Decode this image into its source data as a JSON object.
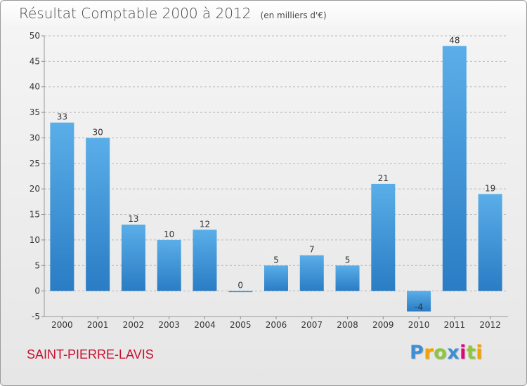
{
  "chart_data": {
    "type": "bar",
    "title": "Résultat Comptable 2000 à 2012",
    "subtitle": "(en milliers d'€)",
    "categories": [
      "2000",
      "2001",
      "2002",
      "2003",
      "2004",
      "2005",
      "2006",
      "2007",
      "2008",
      "2009",
      "2010",
      "2011",
      "2012"
    ],
    "values": [
      33,
      30,
      13,
      10,
      12,
      0,
      5,
      7,
      5,
      21,
      -4,
      48,
      19
    ],
    "ylim": [
      -5,
      50
    ],
    "yticks": [
      -5,
      0,
      5,
      10,
      15,
      20,
      25,
      30,
      35,
      40,
      45,
      50
    ],
    "xlabel": "",
    "ylabel": "",
    "grid": "horizontal-dashed",
    "bar_color": "#3a8fd6"
  },
  "commune": "SAINT-PIERRE-LAVIS",
  "logo": {
    "letters": [
      "P",
      "r",
      "o",
      "x",
      "i",
      "t",
      "i"
    ],
    "colors": [
      "#3a8fd6",
      "#f2a400",
      "#8dc63f",
      "#3a8fd6",
      "#e6007e",
      "#8dc63f",
      "#f2a400"
    ]
  }
}
